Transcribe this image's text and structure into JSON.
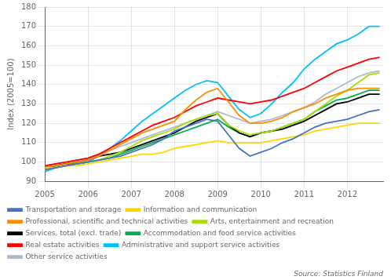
{
  "chart_data": {
    "type": "line",
    "y_label": "Index (2005=100)",
    "annotations": [
      "Source: Statistics Finland"
    ],
    "xlim": [
      2005.0,
      2012.83
    ],
    "xticks": [
      2005,
      2006,
      2007,
      2008,
      2009,
      2010,
      2011,
      2012
    ],
    "ylim": [
      90,
      180
    ],
    "yticks": [
      90,
      100,
      110,
      120,
      130,
      140,
      150,
      160,
      170,
      180
    ],
    "grid": true,
    "legend": "bottom",
    "x": [
      2005.0,
      2005.25,
      2005.5,
      2005.75,
      2006.0,
      2006.25,
      2006.5,
      2006.75,
      2007.0,
      2007.25,
      2007.5,
      2007.75,
      2008.0,
      2008.25,
      2008.5,
      2008.75,
      2009.0,
      2009.25,
      2009.5,
      2009.75,
      2010.0,
      2010.25,
      2010.5,
      2010.75,
      2011.0,
      2011.25,
      2011.5,
      2011.75,
      2012.0,
      2012.25,
      2012.5,
      2012.75
    ],
    "series": [
      {
        "name": "Transportation and storage",
        "color": "#4472C4",
        "values": [
          96,
          97,
          98,
          99,
          100,
          101,
          102,
          103,
          105,
          107,
          109,
          112,
          116,
          118,
          120,
          122,
          121,
          114,
          107,
          103,
          105,
          107,
          110,
          112,
          115,
          118,
          120,
          121,
          122,
          124,
          126,
          127
        ]
      },
      {
        "name": "Information and communication",
        "color": "#FFD700",
        "values": [
          97,
          97,
          98,
          98,
          99,
          100,
          101,
          102,
          103,
          104,
          104,
          105,
          107,
          108,
          109,
          110,
          111,
          110,
          110,
          110,
          110,
          111,
          112,
          113,
          114,
          116,
          117,
          118,
          119,
          120,
          120,
          120
        ]
      },
      {
        "name": "Professional, scientific and technical activities",
        "color": "#FF8C00",
        "values": [
          97,
          98,
          99,
          100,
          101,
          103,
          106,
          109,
          112,
          115,
          117,
          119,
          121,
          127,
          132,
          136,
          138,
          131,
          124,
          120,
          120,
          121,
          123,
          126,
          128,
          130,
          133,
          135,
          137,
          138,
          138,
          138
        ]
      },
      {
        "name": "Arts, entertainment and recreation",
        "color": "#AADD00",
        "values": [
          96,
          97,
          98,
          99,
          100,
          101,
          103,
          105,
          108,
          111,
          113,
          115,
          117,
          120,
          122,
          124,
          125,
          119,
          116,
          114,
          115,
          116,
          118,
          120,
          122,
          126,
          130,
          134,
          137,
          141,
          145,
          146
        ]
      },
      {
        "name": "Services, total (excl. trade)",
        "color": "#000000",
        "values": [
          97,
          98,
          99,
          100,
          101,
          103,
          104,
          105,
          107,
          109,
          111,
          113,
          115,
          118,
          121,
          123,
          125,
          119,
          115,
          113,
          115,
          116,
          117,
          119,
          121,
          124,
          127,
          130,
          131,
          133,
          135,
          135
        ]
      },
      {
        "name": "Accommodation and food service activities",
        "color": "#00B050",
        "values": [
          97,
          98,
          99,
          99,
          100,
          101,
          102,
          104,
          106,
          108,
          110,
          112,
          114,
          116,
          118,
          120,
          122,
          118,
          115,
          113,
          115,
          116,
          118,
          120,
          122,
          126,
          129,
          132,
          133,
          135,
          137,
          137
        ]
      },
      {
        "name": "Real estate activities",
        "color": "#FF0000",
        "values": [
          98,
          99,
          100,
          101,
          102,
          104,
          107,
          110,
          113,
          116,
          119,
          121,
          123,
          126,
          129,
          131,
          133,
          132,
          131,
          130,
          131,
          132,
          134,
          136,
          138,
          141,
          144,
          147,
          149,
          151,
          153,
          154
        ]
      },
      {
        "name": "Administrative and support service activities",
        "color": "#00BFFF",
        "values": [
          95,
          97,
          98,
          99,
          100,
          103,
          107,
          111,
          116,
          121,
          125,
          129,
          133,
          137,
          140,
          142,
          141,
          134,
          127,
          123,
          125,
          130,
          136,
          141,
          148,
          153,
          157,
          161,
          163,
          166,
          170,
          170
        ]
      },
      {
        "name": "Other service activities",
        "color": "#AABBCC",
        "values": [
          98,
          99,
          100,
          101,
          102,
          104,
          106,
          108,
          110,
          112,
          114,
          116,
          118,
          120,
          122,
          124,
          126,
          124,
          122,
          120,
          121,
          122,
          124,
          126,
          128,
          131,
          135,
          138,
          141,
          144,
          146,
          147
        ]
      }
    ]
  }
}
